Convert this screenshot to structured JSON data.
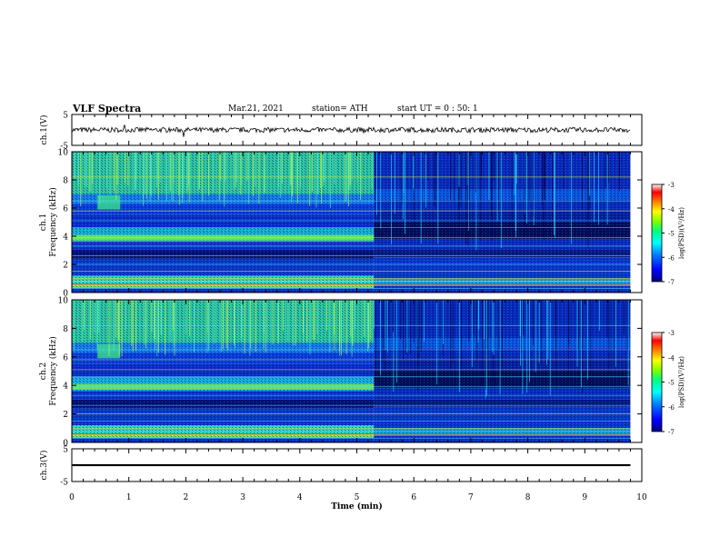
{
  "header": {
    "title": "VLF Spectra",
    "date": "Mar.21, 2021",
    "station": "station= ATH",
    "start_ut": "start  UT =   0 : 50: 1"
  },
  "colorbar": {
    "label": "log(PSD)(V²/Hz)",
    "ticks": [
      -3,
      -4,
      -5,
      -6,
      -7
    ],
    "colors": [
      "#000080",
      "#0000ff",
      "#0080ff",
      "#00ffff",
      "#00ff80",
      "#80ff00",
      "#ffff00",
      "#ff8000",
      "#ff0000",
      "#ffffff"
    ]
  },
  "chart_data": [
    {
      "type": "line",
      "panel": "ch1-waveform",
      "ylabel": "ch.1(V)",
      "ylim": [
        -5,
        5
      ],
      "yticks": [
        5,
        -5
      ],
      "description_values": {
        "baseline": 0,
        "amplitude": 0.8
      }
    },
    {
      "type": "heatmap",
      "panel": "ch1-spectrogram",
      "ylabel": "ch.1\nFrequency (kHz)",
      "ylabel_line1": "ch.1",
      "ylabel_line2": "Frequency (kHz)",
      "ylim": [
        0,
        10
      ],
      "yticks": [
        0,
        2,
        4,
        6,
        8,
        10
      ],
      "xlim": [
        0,
        9.8
      ],
      "colorbar_label": "log(PSD)(V²/Hz)",
      "zlim": [
        -7,
        -3
      ]
    },
    {
      "type": "heatmap",
      "panel": "ch2-spectrogram",
      "ylabel_line1": "ch.2",
      "ylabel_line2": "Frequency (kHz)",
      "ylim": [
        0,
        10
      ],
      "yticks": [
        0,
        2,
        4,
        6,
        8,
        10
      ],
      "xlim": [
        0,
        9.8
      ],
      "colorbar_label": "log(PSD)(V²/Hz)",
      "zlim": [
        -7,
        -3
      ]
    },
    {
      "type": "line",
      "panel": "ch3-waveform",
      "ylabel": "ch.3(V)",
      "ylim": [
        -5,
        5
      ],
      "yticks": [
        5,
        -5
      ],
      "description_values": {
        "baseline": 0,
        "amplitude": 0.3
      }
    }
  ],
  "xaxis": {
    "label": "Time  (min)",
    "ticks": [
      "0",
      "1",
      "2",
      "3",
      "4",
      "5",
      "6",
      "7",
      "8",
      "9",
      "10"
    ],
    "xlim": [
      0,
      10
    ]
  }
}
